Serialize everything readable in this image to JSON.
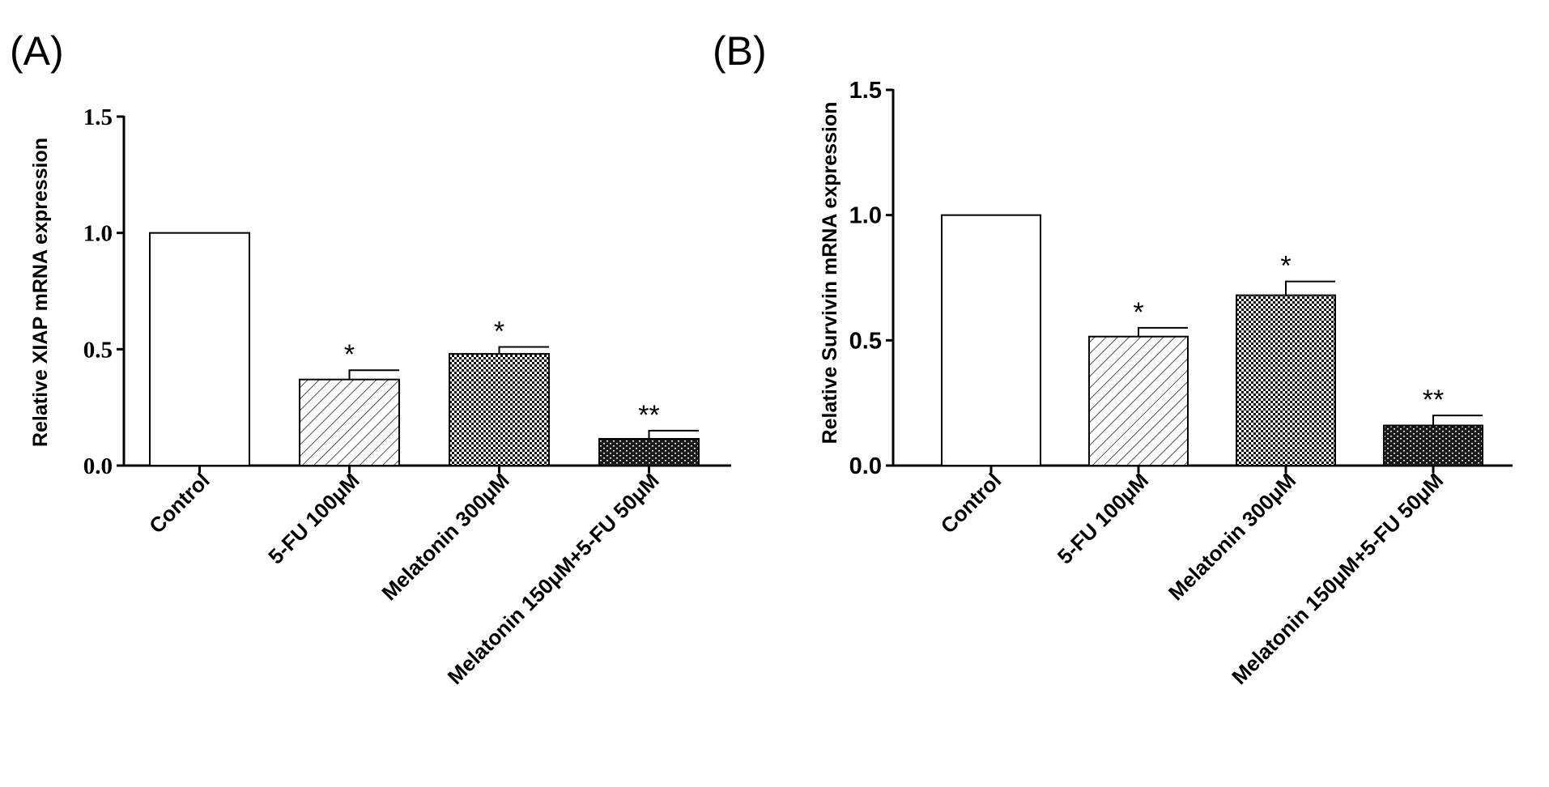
{
  "chart_data": [
    {
      "panel": "(A)",
      "type": "bar",
      "ylabel": "Relative XIAP mRNA expression",
      "xlabel": "",
      "ylim": [
        0,
        1.5
      ],
      "yticks": [
        "0.0",
        "0.5",
        "1.0",
        "1.5"
      ],
      "categories": [
        "Control",
        "5-FU 100μM",
        "Melatonin 300μM",
        "Melatonin 150μM+5-FU 50μM"
      ],
      "values": [
        1.0,
        0.37,
        0.48,
        0.115
      ],
      "errors": [
        0.0,
        0.04,
        0.03,
        0.035
      ],
      "significance": [
        "",
        "*",
        "*",
        "**"
      ],
      "fills": [
        "blank",
        "hatch",
        "checker",
        "brick"
      ]
    },
    {
      "panel": "(B)",
      "type": "bar",
      "ylabel": "Relative Survivin mRNA expression",
      "xlabel": "",
      "ylim": [
        0,
        1.5
      ],
      "yticks": [
        "0.0",
        "0.5",
        "1.0",
        "1.5"
      ],
      "categories": [
        "Control",
        "5-FU 100μM",
        "Melatonin 300μM",
        "Melatonin 150μM+5-FU 50μM"
      ],
      "values": [
        1.0,
        0.515,
        0.68,
        0.16
      ],
      "errors": [
        0.0,
        0.035,
        0.055,
        0.04
      ],
      "significance": [
        "",
        "*",
        "*",
        "**"
      ],
      "fills": [
        "blank",
        "hatch",
        "checker",
        "brick"
      ]
    }
  ]
}
